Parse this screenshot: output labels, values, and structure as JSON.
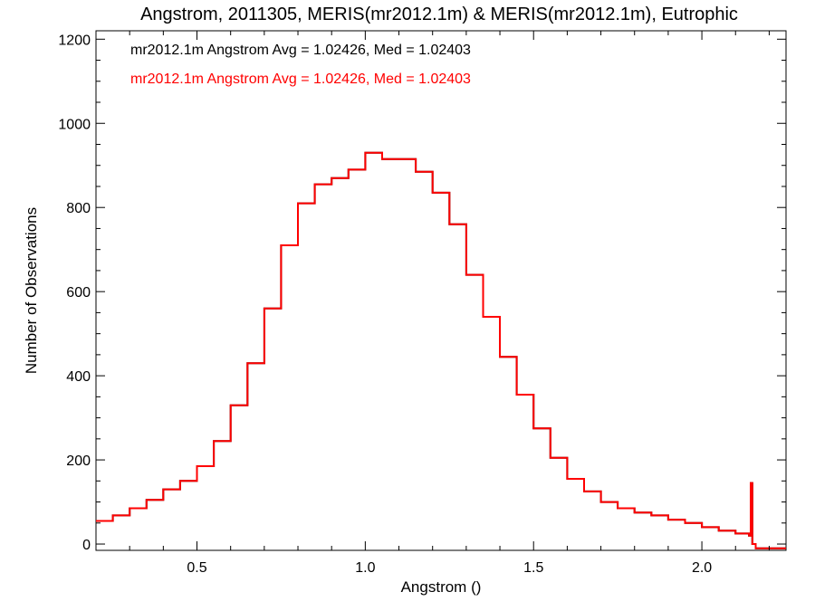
{
  "colors": {
    "series_1": "#000000",
    "series_2": "#ff0000",
    "axis": "#000000"
  },
  "chart_data": {
    "type": "line",
    "step": true,
    "title": "Angstrom, 2011305, MERIS(mr2012.1m) & MERIS(mr2012.1m), Eutrophic",
    "xlabel": "Angstrom ()",
    "ylabel": "Number of Observations",
    "xlim": [
      0.2,
      2.25
    ],
    "ylim": [
      -15,
      1220
    ],
    "x_ticks": [
      0.5,
      1.0,
      1.5,
      2.0
    ],
    "x_tick_labels": [
      "0.5",
      "1.0",
      "1.5",
      "2.0"
    ],
    "y_ticks": [
      0,
      200,
      400,
      600,
      800,
      1000,
      1200
    ],
    "y_tick_labels": [
      "0",
      "200",
      "400",
      "600",
      "800",
      "1000",
      "1200"
    ],
    "grid": false,
    "legend": [
      {
        "text": "mr2012.1m Angstrom Avg = 1.02426, Med = 1.02403",
        "color": "#000000"
      },
      {
        "text": "mr2012.1m Angstrom Avg = 1.02426, Med = 1.02403",
        "color": "#ff0000"
      }
    ],
    "x": [
      0.2,
      0.25,
      0.3,
      0.35,
      0.4,
      0.45,
      0.5,
      0.55,
      0.6,
      0.65,
      0.7,
      0.75,
      0.8,
      0.85,
      0.9,
      0.95,
      1.0,
      1.05,
      1.1,
      1.15,
      1.2,
      1.25,
      1.3,
      1.35,
      1.4,
      1.45,
      1.5,
      1.55,
      1.6,
      1.65,
      1.7,
      1.75,
      1.8,
      1.85,
      1.9,
      1.95,
      2.0,
      2.05,
      2.1,
      2.14,
      2.145,
      2.15,
      2.16,
      2.25
    ],
    "series": [
      {
        "values": [
          55,
          68,
          85,
          105,
          130,
          150,
          185,
          245,
          330,
          430,
          560,
          710,
          810,
          855,
          870,
          890,
          930,
          915,
          915,
          885,
          835,
          760,
          640,
          540,
          445,
          355,
          275,
          205,
          155,
          125,
          100,
          85,
          75,
          68,
          58,
          50,
          40,
          32,
          25,
          20,
          145,
          0,
          -10,
          -10
        ]
      },
      {
        "values": [
          55,
          68,
          85,
          105,
          130,
          150,
          185,
          245,
          330,
          430,
          560,
          710,
          810,
          855,
          870,
          890,
          930,
          915,
          915,
          885,
          835,
          760,
          640,
          540,
          445,
          355,
          275,
          205,
          155,
          125,
          100,
          85,
          75,
          68,
          58,
          50,
          40,
          32,
          25,
          20,
          145,
          0,
          -10,
          -10
        ]
      }
    ]
  }
}
